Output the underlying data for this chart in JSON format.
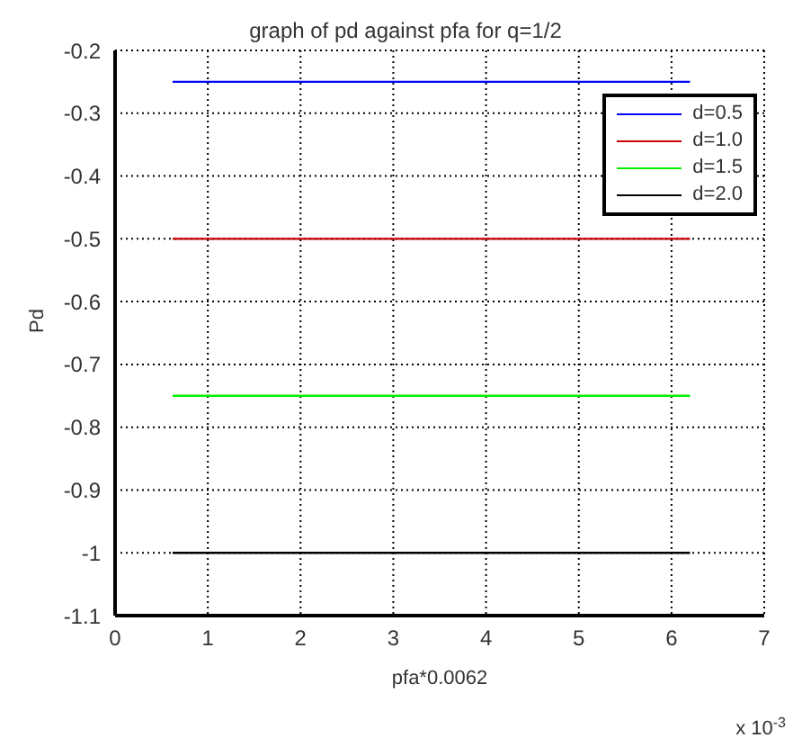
{
  "chart_data": {
    "type": "line",
    "title": "graph of pd against pfa for q=1/2",
    "xlabel": "pfa*0.0062",
    "ylabel": "Pd",
    "annotations": [
      "x 10$^{-3}$"
    ],
    "x": [
      0.62,
      6.2
    ],
    "series": [
      {
        "name": "d=0.5",
        "color": "#0000ff",
        "values": [
          -0.25,
          -0.25
        ]
      },
      {
        "name": "d=1.0",
        "color": "#cc0000",
        "values": [
          -0.5,
          -0.5
        ]
      },
      {
        "name": "d=1.5",
        "color": "#00ee00",
        "values": [
          -0.75,
          -0.75
        ]
      },
      {
        "name": "d=2.0",
        "color": "#000000",
        "values": [
          -1,
          -1
        ]
      }
    ],
    "xlim": [
      0,
      7
    ],
    "xticks": [
      0,
      1,
      2,
      3,
      4,
      5,
      6,
      7
    ],
    "ylim": [
      -1.1,
      -0.2
    ],
    "yticks": [
      -1.1,
      -1,
      -0.9,
      -0.8,
      -0.7,
      -0.6,
      -0.5,
      -0.4,
      -0.3,
      -0.2
    ],
    "grid": true,
    "legend": "top right",
    "marker": "none",
    "line_style": "solid"
  }
}
